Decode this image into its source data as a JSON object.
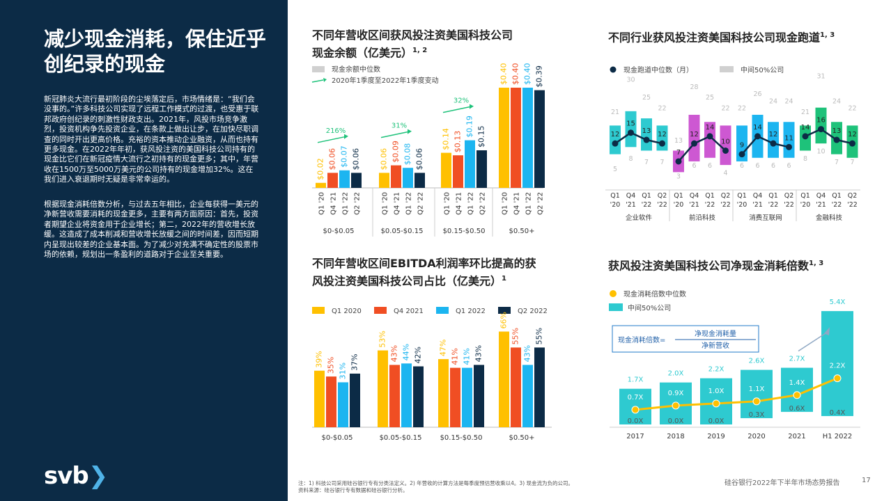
{
  "sidebar": {
    "title": "减少现金消耗，保住近乎创纪录的现金",
    "para1": "新冠肺炎大流行最初阶段的尘埃落定后，市场情绪是：“我们会没事的。”许多科技公司实现了远程工作模式的过渡，也受惠于联邦政府创纪录的刺激性财政支出。2021年，风投市场竞争激烈，投资机构争先投资企业，在条款上做出让步，在加快尽职调查的同时开出更高价格。充裕的资本推动企业融资，从而也持有更多现金。在2022年年初，获风投注资的美国科技公司持有的现金比它们在新冠疫情大流行之初持有的现金更多；其中，年营收在1500万至5000万美元的公司持有的现金增加32%。这在我们进入衰退期时无疑是非常幸运的。",
    "para2": "根据现金消耗倍数分析，与过去五年相比，企业每获得一美元的净新营收需要消耗的现金更多，主要有两方面原因：首先，投资者期望企业将资金用于企业增长；第二，2022年的营收增长放缓。这造成了成本削减和营收增长放缓之间的时间差，因而短期内呈现出较差的企业基本面。为了减少对充满不确定性的股票市场的依赖，规划出一条盈利的道路对于企业至关重要。",
    "logo_text": "svb",
    "logo_chevron": "❯"
  },
  "footnote": {
    "line1": "注：1) 科技公司采用硅谷银行专有分类法定义。2) 年营收的计算方法是每季度预估营收乘以4。3) 现金流为负的公司。",
    "line2": "资料来源：硅谷银行专有数据和硅谷银行分析。"
  },
  "report_name": "硅谷银行2022年下半年市场态势报告",
  "page_number": "17",
  "chart_data": [
    {
      "type": "bar",
      "title_line1": "不同年营收区间获风投注资美国科技公司",
      "title_line2": "现金余额（亿美元）",
      "title_sup": "1, 2",
      "legend": [
        "现金余额中位数",
        "2020年1季度至2022年1季度变动"
      ],
      "groups": [
        "$0-$0.05",
        "$0.05-$0.15",
        "$0.15-$0.50",
        "$0.50+"
      ],
      "quarters": [
        "Q1 '20",
        "Q4 '21",
        "Q1 '22",
        "Q2 '22"
      ],
      "values": [
        [
          0.02,
          0.06,
          0.07,
          0.06
        ],
        [
          0.06,
          0.09,
          0.08,
          0.06
        ],
        [
          0.14,
          0.13,
          0.19,
          0.15
        ],
        [
          0.4,
          0.4,
          0.4,
          0.39
        ]
      ],
      "labels": [
        [
          "$0.02",
          "$0.06",
          "$0.07",
          "$0.06"
        ],
        [
          "$0.06",
          "$0.09",
          "$0.08",
          "$0.06"
        ],
        [
          "$0.14",
          "$0.13",
          "$0.19",
          "$0.15"
        ],
        [
          "$0.40",
          "$0.40",
          "$0.40",
          "$0.39"
        ]
      ],
      "changes": [
        "216%",
        "31%",
        "32%",
        "-1%"
      ],
      "colors": [
        "#ffc000",
        "#f04e23",
        "#1cb5f0",
        "#0c2b46"
      ],
      "ylim": [
        0,
        0.45
      ]
    },
    {
      "type": "range",
      "title": "不同行业获风投注资美国科技公司现金跑道",
      "title_sup": "1, 3",
      "legend": [
        "现金跑道中位数（月）",
        "中间50%公司"
      ],
      "quarters": [
        "Q1 '20",
        "Q4 '21",
        "Q1 '22",
        "Q2 '22"
      ],
      "sectors": [
        {
          "name": "企业软件",
          "color": "#2ecad0",
          "low": [
            5,
            8,
            7,
            7
          ],
          "high": [
            21,
            30,
            25,
            22
          ],
          "q1": [
            9,
            11,
            10,
            10
          ],
          "q3": [
            17,
            21,
            19,
            17
          ],
          "median": [
            12,
            15,
            13,
            12
          ]
        },
        {
          "name": "前沿科技",
          "color": "#cd58d2",
          "low": [
            3,
            6,
            6,
            4
          ],
          "high": [
            13,
            28,
            25,
            22
          ],
          "q1": [
            4,
            7,
            8,
            6
          ],
          "q3": [
            10,
            20,
            18,
            17
          ],
          "median": [
            7,
            12,
            14,
            10
          ]
        },
        {
          "name": "消费互联网",
          "color": "#1cb5f0",
          "low": [
            6,
            6,
            6,
            6
          ],
          "high": [
            22,
            26,
            24,
            24
          ],
          "q1": [
            7,
            8,
            8,
            8
          ],
          "q3": [
            17,
            20,
            18,
            18
          ],
          "median": [
            9,
            14,
            12,
            11
          ]
        },
        {
          "name": "金融科技",
          "color": "#1ec27a",
          "low": [
            8,
            10,
            7,
            7
          ],
          "high": [
            21,
            31,
            24,
            22
          ],
          "q1": [
            10,
            12,
            9,
            8
          ],
          "q3": [
            17,
            22,
            18,
            17
          ],
          "median": [
            14,
            16,
            13,
            12
          ]
        }
      ],
      "ylim": [
        0,
        33
      ]
    },
    {
      "type": "bar",
      "title_line1": "不同年营收区间EBITDA利润率环比提高的获",
      "title_line2": "风投注资美国科技公司占比（亿美元）",
      "title_sup": "1",
      "legend": [
        "Q1 2020",
        "Q4 2021",
        "Q1 2022",
        "Q2 2022"
      ],
      "groups": [
        "$0-$0.05",
        "$0.05-$0.15",
        "$0.15-$0.50",
        "$0.50+"
      ],
      "values": [
        [
          39,
          35,
          31,
          37
        ],
        [
          53,
          43,
          44,
          42
        ],
        [
          47,
          41,
          41,
          43
        ],
        [
          66,
          55,
          43,
          55
        ]
      ],
      "labels": [
        [
          "39%",
          "35%",
          "31%",
          "37%"
        ],
        [
          "53%",
          "43%",
          "44%",
          "42%"
        ],
        [
          "47%",
          "41%",
          "41%",
          "43%"
        ],
        [
          "66%",
          "55%",
          "43%",
          "55%"
        ]
      ],
      "colors": [
        "#ffc000",
        "#f04e23",
        "#1cb5f0",
        "#0c2b46"
      ],
      "ylim": [
        0,
        72
      ]
    },
    {
      "type": "range",
      "title": "获风投注资美国科技公司净现金消耗倍数",
      "title_sup": "1, 3",
      "legend": [
        "现金消耗倍数中位数",
        "中间50%公司"
      ],
      "formula_label": "现金消耗倍数=",
      "formula_numerator": "净现金消耗量",
      "formula_denominator": "净新营收",
      "categories": [
        "2017",
        "2018",
        "2019",
        "2020",
        "2021",
        "H1 2022"
      ],
      "median": [
        0.7,
        0.9,
        1.0,
        1.1,
        1.4,
        2.2
      ],
      "low": [
        0.0,
        0.0,
        0.0,
        0.3,
        0.6,
        0.4
      ],
      "high": [
        1.7,
        2.0,
        2.2,
        2.6,
        2.7,
        5.4
      ],
      "median_labels": [
        "0.7X",
        "0.9X",
        "1.0X",
        "1.1X",
        "1.4X",
        "2.2X"
      ],
      "low_labels": [
        "0.0X",
        "0.0X",
        "0.0X",
        "0.3X",
        "0.6X",
        "0.4X"
      ],
      "high_labels": [
        "1.7X",
        "2.0X",
        "2.2X",
        "2.6X",
        "2.7X",
        "5.4X"
      ],
      "box_color": "#2ecad0",
      "line_color": "#ffc000",
      "ylim": [
        0,
        5.8
      ]
    }
  ]
}
